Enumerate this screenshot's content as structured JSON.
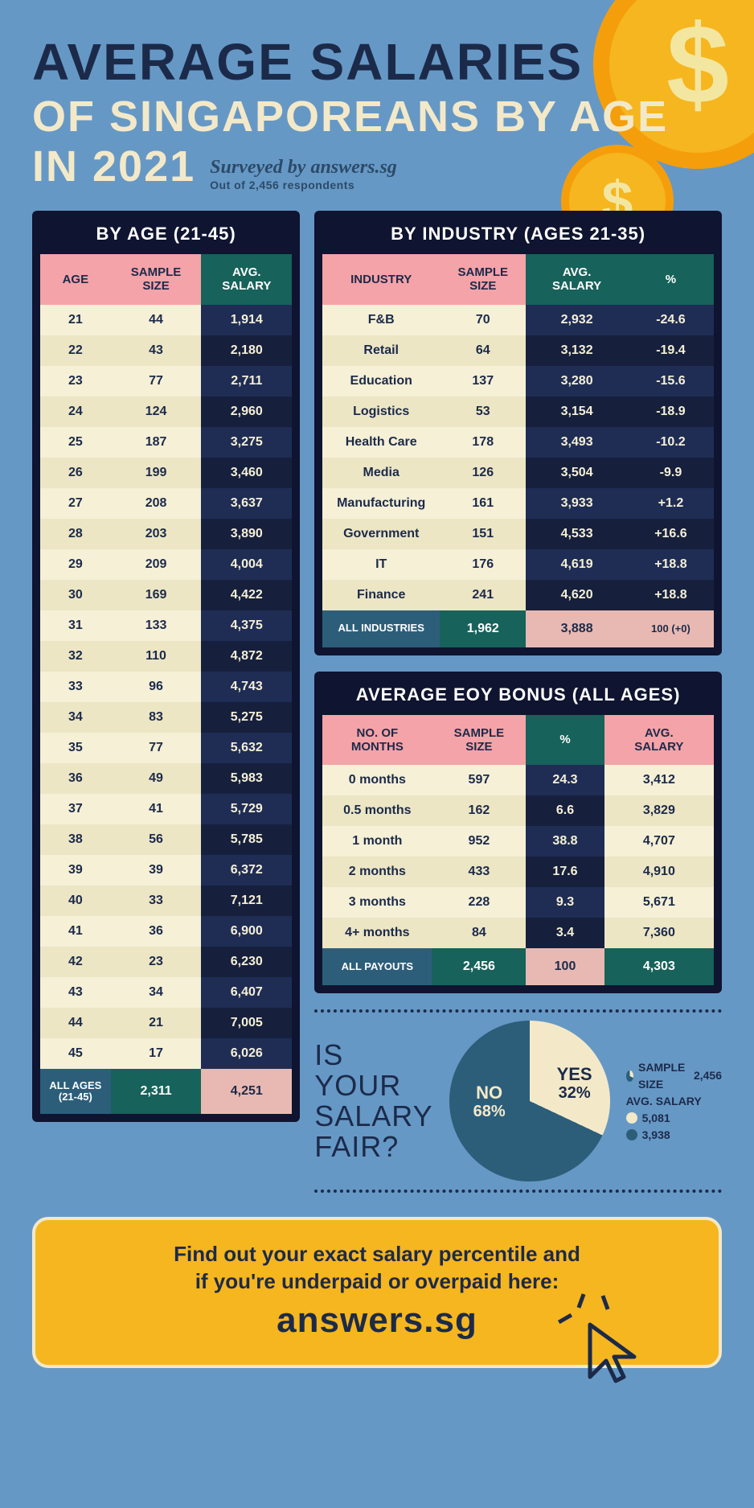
{
  "colors": {
    "bg": "#6698c5",
    "dark_navy": "#0f1430",
    "navy_text": "#1c2a4a",
    "cream": "#f5f0d6",
    "cream_alt": "#ece6c5",
    "pink": "#f4a3a8",
    "teal": "#17625a",
    "navy_row": "#1f2d55",
    "navy_row_alt": "#16203d",
    "teal_blue": "#2c5e7a",
    "peach": "#e8b9b2",
    "yellow": "#f5b61f",
    "off_white": "#f3e9c9"
  },
  "header": {
    "line1": "AVERAGE SALARIES",
    "line2": "OF SINGAPOREANS BY AGE",
    "line3": "IN 2021",
    "surveyed": "Surveyed by answers.sg",
    "sub": "Out of 2,456 respondents"
  },
  "age_table": {
    "title": "BY AGE (21-45)",
    "headers": {
      "c1": "AGE",
      "c2": "SAMPLE\nSIZE",
      "c3": "AVG.\nSALARY"
    },
    "rows": [
      {
        "age": "21",
        "size": "44",
        "salary": "1,914"
      },
      {
        "age": "22",
        "size": "43",
        "salary": "2,180"
      },
      {
        "age": "23",
        "size": "77",
        "salary": "2,711"
      },
      {
        "age": "24",
        "size": "124",
        "salary": "2,960"
      },
      {
        "age": "25",
        "size": "187",
        "salary": "3,275"
      },
      {
        "age": "26",
        "size": "199",
        "salary": "3,460"
      },
      {
        "age": "27",
        "size": "208",
        "salary": "3,637"
      },
      {
        "age": "28",
        "size": "203",
        "salary": "3,890"
      },
      {
        "age": "29",
        "size": "209",
        "salary": "4,004"
      },
      {
        "age": "30",
        "size": "169",
        "salary": "4,422"
      },
      {
        "age": "31",
        "size": "133",
        "salary": "4,375"
      },
      {
        "age": "32",
        "size": "110",
        "salary": "4,872"
      },
      {
        "age": "33",
        "size": "96",
        "salary": "4,743"
      },
      {
        "age": "34",
        "size": "83",
        "salary": "5,275"
      },
      {
        "age": "35",
        "size": "77",
        "salary": "5,632"
      },
      {
        "age": "36",
        "size": "49",
        "salary": "5,983"
      },
      {
        "age": "37",
        "size": "41",
        "salary": "5,729"
      },
      {
        "age": "38",
        "size": "56",
        "salary": "5,785"
      },
      {
        "age": "39",
        "size": "39",
        "salary": "6,372"
      },
      {
        "age": "40",
        "size": "33",
        "salary": "7,121"
      },
      {
        "age": "41",
        "size": "36",
        "salary": "6,900"
      },
      {
        "age": "42",
        "size": "23",
        "salary": "6,230"
      },
      {
        "age": "43",
        "size": "34",
        "salary": "6,407"
      },
      {
        "age": "44",
        "size": "21",
        "salary": "7,005"
      },
      {
        "age": "45",
        "size": "17",
        "salary": "6,026"
      }
    ],
    "total": {
      "label": "ALL AGES\n(21-45)",
      "size": "2,311",
      "salary": "4,251"
    }
  },
  "industry_table": {
    "title": "BY INDUSTRY (AGES 21-35)",
    "headers": {
      "c1": "INDUSTRY",
      "c2": "SAMPLE\nSIZE",
      "c3": "AVG.\nSALARY",
      "c4": "%"
    },
    "rows": [
      {
        "ind": "F&B",
        "size": "70",
        "salary": "2,932",
        "pct": "-24.6"
      },
      {
        "ind": "Retail",
        "size": "64",
        "salary": "3,132",
        "pct": "-19.4"
      },
      {
        "ind": "Education",
        "size": "137",
        "salary": "3,280",
        "pct": "-15.6"
      },
      {
        "ind": "Logistics",
        "size": "53",
        "salary": "3,154",
        "pct": "-18.9"
      },
      {
        "ind": "Health Care",
        "size": "178",
        "salary": "3,493",
        "pct": "-10.2"
      },
      {
        "ind": "Media",
        "size": "126",
        "salary": "3,504",
        "pct": "-9.9"
      },
      {
        "ind": "Manufacturing",
        "size": "161",
        "salary": "3,933",
        "pct": "+1.2"
      },
      {
        "ind": "Government",
        "size": "151",
        "salary": "4,533",
        "pct": "+16.6"
      },
      {
        "ind": "IT",
        "size": "176",
        "salary": "4,619",
        "pct": "+18.8"
      },
      {
        "ind": "Finance",
        "size": "241",
        "salary": "4,620",
        "pct": "+18.8"
      }
    ],
    "total": {
      "label": "ALL INDUSTRIES",
      "size": "1,962",
      "salary": "3,888",
      "pct": "100 (+0)"
    }
  },
  "bonus_table": {
    "title": "AVERAGE EOY BONUS (ALL AGES)",
    "headers": {
      "c1": "NO. OF\nMONTHS",
      "c2": "SAMPLE\nSIZE",
      "c3": "%",
      "c4": "AVG.\nSALARY"
    },
    "rows": [
      {
        "m": "0 months",
        "size": "597",
        "pct": "24.3",
        "salary": "3,412"
      },
      {
        "m": "0.5 months",
        "size": "162",
        "pct": "6.6",
        "salary": "3,829"
      },
      {
        "m": "1 month",
        "size": "952",
        "pct": "38.8",
        "salary": "4,707"
      },
      {
        "m": "2 months",
        "size": "433",
        "pct": "17.6",
        "salary": "4,910"
      },
      {
        "m": "3 months",
        "size": "228",
        "pct": "9.3",
        "salary": "5,671"
      },
      {
        "m": "4+ months",
        "size": "84",
        "pct": "3.4",
        "salary": "7,360"
      }
    ],
    "total": {
      "label": "ALL PAYOUTS",
      "size": "2,456",
      "pct": "100",
      "salary": "4,303"
    }
  },
  "pie": {
    "title": "IS YOUR\nSALARY\nFAIR?",
    "yes": {
      "label": "YES",
      "pct_label": "32%",
      "value": 32,
      "color": "#f3e9c9",
      "text_color": "#1c2a4a"
    },
    "no": {
      "label": "NO",
      "pct_label": "68%",
      "value": 68,
      "color": "#2c5e7a",
      "text_color": "#f3e9c9"
    },
    "legend": {
      "title": "SAMPLE SIZE",
      "sample_icon_color_a": "#2c5e7a",
      "sample_icon_color_b": "#f3e9c9",
      "sample_value": "2,456",
      "avg_title": "AVG. SALARY",
      "row_a": {
        "color": "#f3e9c9",
        "value": "5,081"
      },
      "row_b": {
        "color": "#2c5e7a",
        "value": "3,938"
      }
    }
  },
  "cta": {
    "line1": "Find out your exact salary percentile and",
    "line2": "if you're underpaid or overpaid here:",
    "brand": "answers.sg"
  }
}
